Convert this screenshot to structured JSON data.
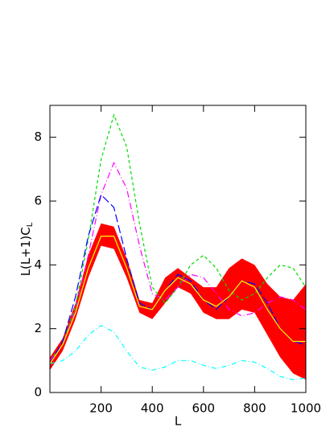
{
  "chart_data": {
    "type": "line",
    "xlabel": "L",
    "ylabel": {
      "text": "L(L+1)C",
      "subscript": "L"
    },
    "xlim": [
      0,
      1000
    ],
    "ylim": [
      0,
      9
    ],
    "xticks": [
      200,
      400,
      600,
      800,
      1000
    ],
    "yticks": [
      0,
      2,
      4,
      6,
      8
    ],
    "x": [
      0,
      50,
      100,
      150,
      200,
      250,
      300,
      350,
      400,
      450,
      500,
      550,
      600,
      650,
      700,
      750,
      800,
      850,
      900,
      950,
      1000
    ],
    "band": {
      "color": "#ff0000",
      "upper": [
        1.1,
        1.7,
        2.8,
        4.3,
        5.3,
        5.2,
        4.2,
        2.9,
        2.8,
        3.6,
        3.9,
        3.6,
        3.3,
        3.3,
        3.9,
        4.2,
        4.0,
        3.4,
        3.0,
        2.9,
        3.4
      ],
      "lower": [
        0.7,
        1.3,
        2.3,
        3.6,
        4.6,
        4.5,
        3.6,
        2.5,
        2.3,
        2.8,
        3.3,
        3.1,
        2.5,
        2.3,
        2.3,
        2.6,
        2.5,
        1.8,
        1.1,
        0.6,
        0.4
      ]
    },
    "series": [
      {
        "color": "#00ffff",
        "dash": "6 3 1 3",
        "values": [
          0.9,
          1.0,
          1.3,
          1.8,
          2.1,
          1.9,
          1.3,
          0.8,
          0.7,
          0.8,
          1.0,
          1.0,
          0.85,
          0.75,
          0.85,
          1.0,
          0.95,
          0.75,
          0.5,
          0.4,
          0.45
        ]
      },
      {
        "color": "#00dd00",
        "dash": "4 3",
        "values": [
          1.0,
          1.5,
          2.7,
          4.8,
          7.3,
          8.7,
          7.7,
          5.3,
          3.3,
          2.8,
          3.3,
          4.0,
          4.3,
          3.9,
          3.2,
          2.9,
          3.1,
          3.6,
          4.0,
          3.9,
          3.3
        ]
      },
      {
        "color": "#ff00ff",
        "dash": "8 3 1 3",
        "values": [
          1.0,
          1.5,
          2.6,
          4.3,
          6.2,
          7.2,
          6.4,
          4.6,
          3.1,
          2.9,
          3.3,
          3.7,
          3.6,
          3.1,
          2.6,
          2.4,
          2.5,
          2.8,
          3.0,
          2.9,
          2.6
        ]
      },
      {
        "color": "#0000ff",
        "dash": "10 4",
        "values": [
          0.9,
          1.6,
          3.0,
          4.9,
          6.2,
          5.8,
          4.2,
          2.8,
          2.6,
          3.2,
          3.7,
          3.5,
          2.9,
          2.6,
          3.0,
          3.5,
          3.4,
          2.8,
          2.0,
          1.6,
          1.5
        ]
      },
      {
        "color": "#ffff00",
        "dash": "",
        "values": [
          0.9,
          1.5,
          2.5,
          3.9,
          4.9,
          4.9,
          3.9,
          2.7,
          2.6,
          3.2,
          3.6,
          3.4,
          2.9,
          2.7,
          3.0,
          3.5,
          3.3,
          2.6,
          2.0,
          1.6,
          1.6
        ]
      }
    ]
  }
}
